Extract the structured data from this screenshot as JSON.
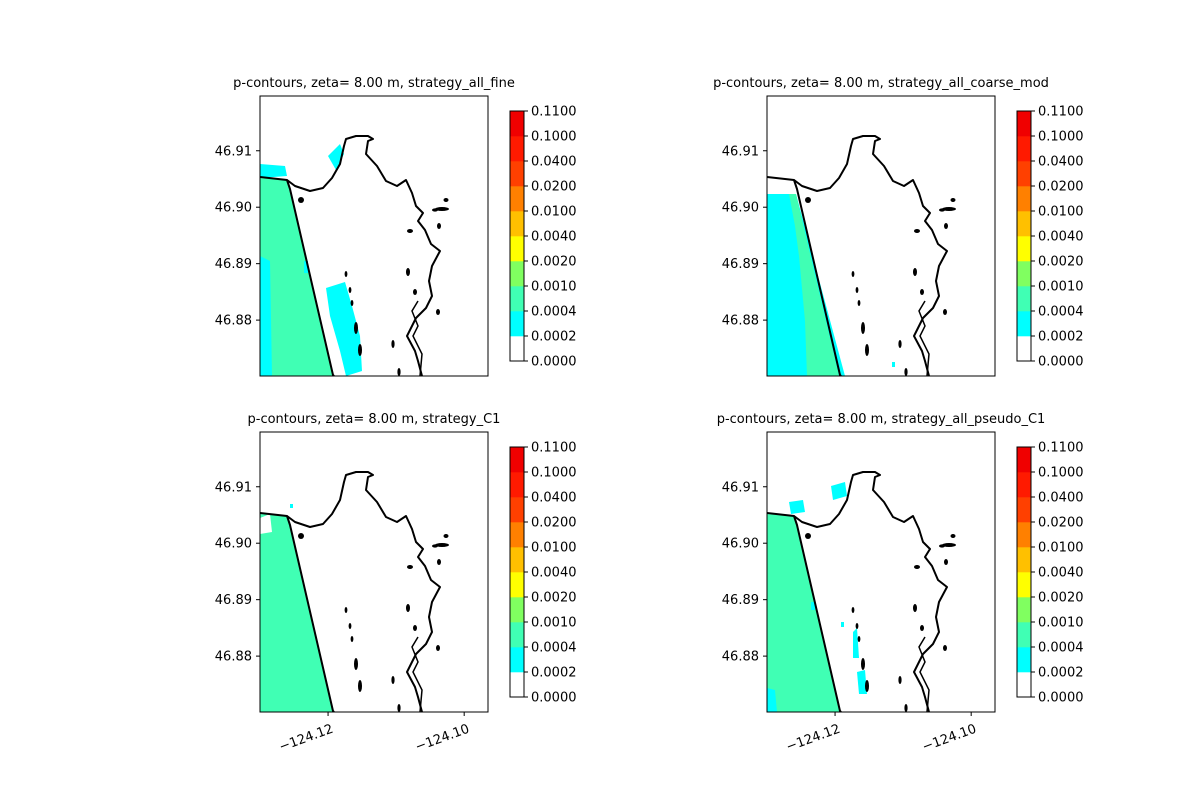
{
  "chart_data": {
    "type": "contour-map",
    "x_ticks": [
      -124.12,
      -124.1
    ],
    "y_ticks": [
      46.88,
      46.89,
      46.9,
      46.91
    ],
    "x_tick_labels": [
      "−124.12",
      "−124.10"
    ],
    "y_tick_labels": [
      "46.88",
      "46.89",
      "46.90",
      "46.91"
    ],
    "colorbar": {
      "levels": [
        "0.0000",
        "0.0002",
        "0.0004",
        "0.0010",
        "0.0020",
        "0.0040",
        "0.0100",
        "0.0200",
        "0.0400",
        "0.1000",
        "0.1100"
      ],
      "colors": [
        "#ffffff",
        "#00ffff",
        "#40ffb4",
        "#80ff60",
        "#ffff00",
        "#ffc000",
        "#ff8000",
        "#ff4000",
        "#ff1a00",
        "#f00000"
      ]
    },
    "panels": [
      {
        "title": "p-contours, zeta= 8.00 m, strategy_all_fine",
        "show_x_ticks": false
      },
      {
        "title": "p-contours, zeta= 8.00 m, strategy_all_coarse_mod",
        "show_x_ticks": false
      },
      {
        "title": "p-contours, zeta= 8.00 m, strategy_C1",
        "show_x_ticks": true
      },
      {
        "title": "p-contours, zeta= 8.00 m, strategy_all_pseudo_C1",
        "show_x_ticks": true
      }
    ]
  }
}
